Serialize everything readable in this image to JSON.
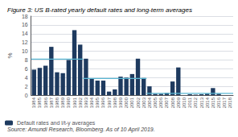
{
  "chart_data": {
    "type": "bar",
    "title": "Figure 3: US B-rated yearly default rates and long-term averages",
    "ylabel": "%",
    "source": "Source: Amundi Research, Bloomberg. As of 10 April 2019.",
    "categories": [
      "1984",
      "1985",
      "1986",
      "1987",
      "1988",
      "1989",
      "1990",
      "1991",
      "1992",
      "1993",
      "1994",
      "1995",
      "1996",
      "1997",
      "1998",
      "1999",
      "2000",
      "2001",
      "2002",
      "2003",
      "2004",
      "2005",
      "2006",
      "2007",
      "2008",
      "2009",
      "2010",
      "2011",
      "2012",
      "2013",
      "2014",
      "2015",
      "2016",
      "2017",
      "2018"
    ],
    "series": [
      {
        "name": "Default rates and l/t-y averages",
        "type": "bar",
        "color": "#1e3a5f",
        "values": [
          5.8,
          6.2,
          6.7,
          11.0,
          5.2,
          5.0,
          8.0,
          14.8,
          11.5,
          8.3,
          3.7,
          3.3,
          3.3,
          0.8,
          1.3,
          4.2,
          4.0,
          4.8,
          8.3,
          3.9,
          2.0,
          0.3,
          0.3,
          0.5,
          3.1,
          6.3,
          0.0,
          0.2,
          0.1,
          0.2,
          0.3,
          1.6,
          0.3,
          0.0,
          0.0
        ]
      }
    ],
    "avg_segments": {
      "color": "#5bb8d4",
      "items": [
        {
          "x_start": "1984",
          "x_end": "1992",
          "y": 8.2
        },
        {
          "x_start": "1993",
          "x_end": "2003",
          "y": 3.8
        },
        {
          "x_start": "2004",
          "x_end": "2013",
          "y": 0.4
        },
        {
          "x_start": "2014",
          "x_end": "2018",
          "y": 0.4
        }
      ]
    },
    "ylim": [
      0,
      18
    ],
    "yticks": [
      0,
      2,
      4,
      6,
      8,
      10,
      12,
      14,
      16,
      18
    ],
    "grid": true,
    "legend": "lower left"
  }
}
